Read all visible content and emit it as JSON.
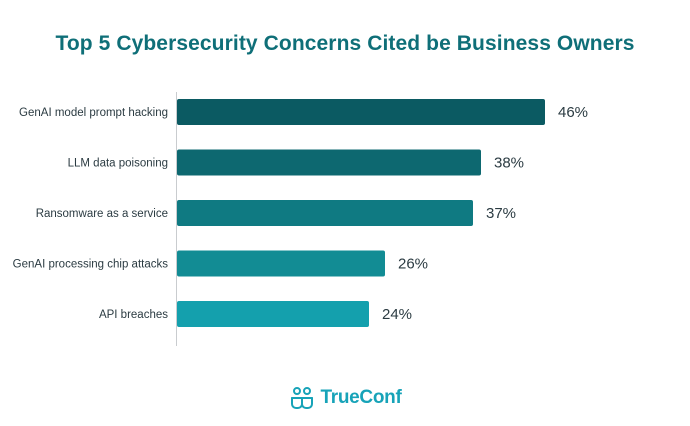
{
  "title": "Top 5 Cybersecurity Concerns Cited be Business Owners",
  "chart_data": {
    "type": "bar",
    "orientation": "horizontal",
    "categories": [
      "GenAI model prompt hacking",
      "LLM data poisoning",
      "Ransomware as a service",
      "GenAI processing chip attacks",
      "API breaches"
    ],
    "values": [
      46,
      38,
      37,
      26,
      24
    ],
    "value_labels": [
      "46%",
      "38%",
      "37%",
      "26%",
      "24%"
    ],
    "bar_colors": [
      "#0b5a62",
      "#0d6870",
      "#0f7a82",
      "#128c94",
      "#14a0ad"
    ],
    "xlim": [
      0,
      46
    ],
    "grid": false,
    "legend": "none"
  },
  "brand": {
    "name": "TrueConf",
    "icon": "trueconf-logo-icon",
    "color": "#17a3b8"
  },
  "colors": {
    "title": "#0f6f78",
    "text": "#2b3b42",
    "axis": "#c9cccf"
  }
}
